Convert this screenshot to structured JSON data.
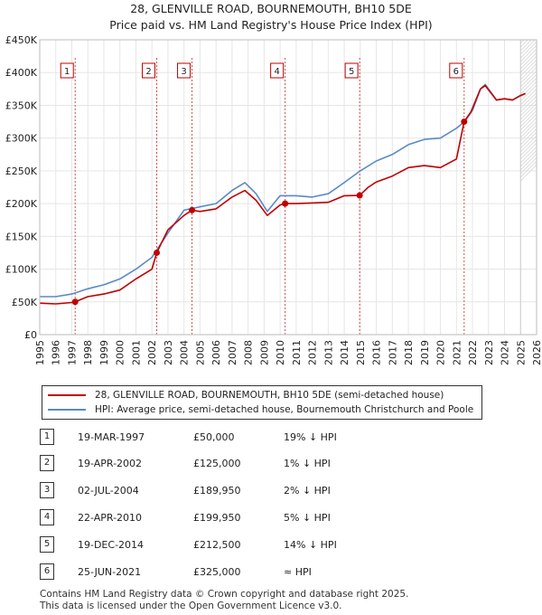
{
  "title_line1": "28, GLENVILLE ROAD, BOURNEMOUTH, BH10 5DE",
  "title_line2": "Price paid vs. HM Land Registry's House Price Index (HPI)",
  "colors": {
    "property": "#c00000",
    "hpi": "#5a8ac6",
    "grid": "#e6e6e6"
  },
  "chart_data": {
    "type": "line",
    "title": "28, GLENVILLE ROAD, BOURNEMOUTH, BH10 5DE",
    "xlabel": "",
    "ylabel": "",
    "xlim": [
      1995,
      2026
    ],
    "ylim": [
      0,
      450000
    ],
    "x_ticks": [
      "1995",
      "1996",
      "1997",
      "1998",
      "1999",
      "2000",
      "2001",
      "2002",
      "2003",
      "2004",
      "2005",
      "2006",
      "2007",
      "2008",
      "2009",
      "2010",
      "2011",
      "2012",
      "2013",
      "2014",
      "2015",
      "2016",
      "2017",
      "2018",
      "2019",
      "2020",
      "2021",
      "2022",
      "2023",
      "2024",
      "2025",
      "2026"
    ],
    "y_ticks": [
      {
        "value": 0,
        "label": "£0"
      },
      {
        "value": 50000,
        "label": "£50K"
      },
      {
        "value": 100000,
        "label": "£100K"
      },
      {
        "value": 150000,
        "label": "£150K"
      },
      {
        "value": 200000,
        "label": "£200K"
      },
      {
        "value": 250000,
        "label": "£250K"
      },
      {
        "value": 300000,
        "label": "£300K"
      },
      {
        "value": 350000,
        "label": "£350K"
      },
      {
        "value": 400000,
        "label": "£400K"
      },
      {
        "value": 450000,
        "label": "£450K"
      }
    ],
    "series": [
      {
        "name": "28, GLENVILLE ROAD, BOURNEMOUTH, BH10 5DE (semi-detached house)",
        "color": "#c00000",
        "x": [
          1995.0,
          1996.0,
          1997.0,
          1997.21,
          1998.0,
          1999.0,
          2000.0,
          2001.0,
          2002.0,
          2002.3,
          2003.0,
          2004.0,
          2004.5,
          2005.0,
          2006.0,
          2007.0,
          2007.8,
          2008.5,
          2009.2,
          2010.0,
          2010.31,
          2011.0,
          2012.0,
          2013.0,
          2014.0,
          2014.96,
          2015.5,
          2016.0,
          2017.0,
          2018.0,
          2019.0,
          2020.0,
          2021.0,
          2021.48,
          2021.9,
          2022.5,
          2022.8,
          2023.5,
          2024.0,
          2024.5,
          2025.0,
          2025.3
        ],
        "values": [
          48000,
          47000,
          49000,
          50000,
          58000,
          62000,
          68000,
          85000,
          100000,
          125000,
          160000,
          182000,
          189950,
          188000,
          192000,
          210000,
          220000,
          205000,
          182000,
          198000,
          199950,
          200000,
          201000,
          202000,
          212000,
          212500,
          225000,
          233000,
          242000,
          255000,
          258000,
          255000,
          268000,
          325000,
          340000,
          375000,
          380000,
          358000,
          360000,
          358000,
          365000,
          368000
        ]
      },
      {
        "name": "HPI: Average price, semi-detached house, Bournemouth Christchurch and Poole",
        "color": "#5a8ac6",
        "x": [
          1995.0,
          1996.0,
          1997.0,
          1998.0,
          1999.0,
          2000.0,
          2001.0,
          2002.0,
          2003.0,
          2004.0,
          2005.0,
          2006.0,
          2007.0,
          2007.8,
          2008.5,
          2009.2,
          2010.0,
          2011.0,
          2012.0,
          2013.0,
          2014.0,
          2015.0,
          2016.0,
          2017.0,
          2018.0,
          2019.0,
          2020.0,
          2021.0,
          2021.5,
          2022.0,
          2022.5,
          2022.8,
          2023.5,
          2024.0,
          2024.5,
          2025.0,
          2025.3
        ],
        "values": [
          58000,
          58000,
          62000,
          70000,
          76000,
          85000,
          100000,
          118000,
          155000,
          190000,
          195000,
          200000,
          220000,
          232000,
          215000,
          188000,
          212000,
          212000,
          210000,
          215000,
          232000,
          250000,
          265000,
          275000,
          290000,
          298000,
          300000,
          315000,
          325000,
          342000,
          375000,
          382000,
          358000,
          360000,
          358000,
          365000,
          368000
        ]
      }
    ],
    "markers": [
      {
        "label": "1",
        "x": 1997.21,
        "value": 50000
      },
      {
        "label": "2",
        "x": 2002.3,
        "value": 125000
      },
      {
        "label": "3",
        "x": 2004.5,
        "value": 189950
      },
      {
        "label": "4",
        "x": 2010.31,
        "value": 199950
      },
      {
        "label": "5",
        "x": 2014.96,
        "value": 212500
      },
      {
        "label": "6",
        "x": 2021.48,
        "value": 325000
      }
    ]
  },
  "legend": {
    "property_label": "28, GLENVILLE ROAD, BOURNEMOUTH, BH10 5DE (semi-detached house)",
    "hpi_label": "HPI: Average price, semi-detached house, Bournemouth Christchurch and Poole"
  },
  "transactions": [
    {
      "num": "1",
      "date": "19-MAR-1997",
      "price": "£50,000",
      "hpi": "19% ↓ HPI"
    },
    {
      "num": "2",
      "date": "19-APR-2002",
      "price": "£125,000",
      "hpi": "1% ↓ HPI"
    },
    {
      "num": "3",
      "date": "02-JUL-2004",
      "price": "£189,950",
      "hpi": "2% ↓ HPI"
    },
    {
      "num": "4",
      "date": "22-APR-2010",
      "price": "£199,950",
      "hpi": "5% ↓ HPI"
    },
    {
      "num": "5",
      "date": "19-DEC-2014",
      "price": "£212,500",
      "hpi": "14% ↓ HPI"
    },
    {
      "num": "6",
      "date": "25-JUN-2021",
      "price": "£325,000",
      "hpi": "≈ HPI"
    }
  ],
  "footer_line1": "Contains HM Land Registry data © Crown copyright and database right 2025.",
  "footer_line2": "This data is licensed under the Open Government Licence v3.0."
}
